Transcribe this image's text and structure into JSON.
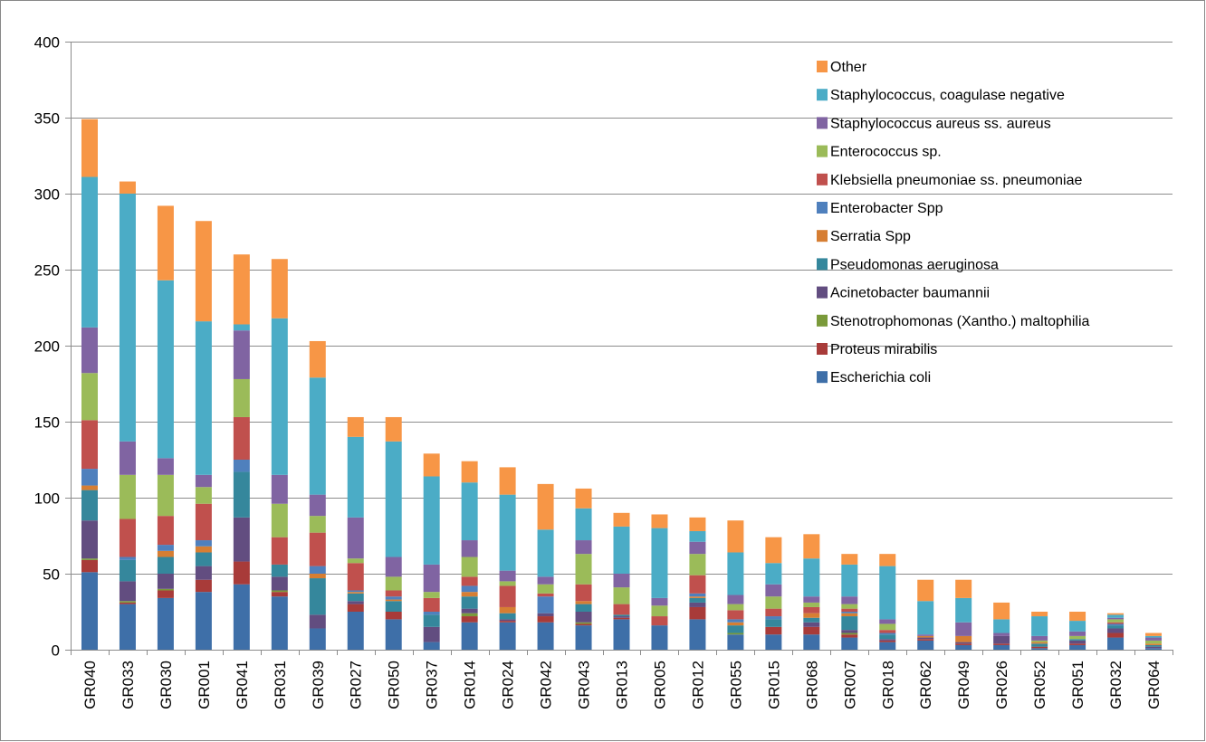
{
  "chart_data": {
    "type": "bar",
    "stacked": true,
    "title": "",
    "xlabel": "",
    "ylabel": "",
    "ylim": [
      0,
      400
    ],
    "yticks": [
      0,
      50,
      100,
      150,
      200,
      250,
      300,
      350,
      400
    ],
    "grid": "horizontal",
    "legend_position": "top-right",
    "categories": [
      "GR040",
      "GR033",
      "GR030",
      "GR001",
      "GR041",
      "GR031",
      "GR039",
      "GR027",
      "GR050",
      "GR037",
      "GR014",
      "GR024",
      "GR042",
      "GR043",
      "GR013",
      "GR005",
      "GR012",
      "GR055",
      "GR015",
      "GR068",
      "GR007",
      "GR018",
      "GR062",
      "GR049",
      "GR026",
      "GR052",
      "GR051",
      "GR032",
      "GR064"
    ],
    "series": [
      {
        "name": "Escherichia coli",
        "color": "#3e6fa8",
        "values": [
          51,
          30,
          34,
          38,
          43,
          35,
          14,
          25,
          20,
          5,
          18,
          18,
          18,
          16,
          20,
          16,
          20,
          10,
          10,
          10,
          8,
          5,
          6,
          3,
          3,
          1,
          3,
          8,
          1
        ]
      },
      {
        "name": "Proteus mirabilis",
        "color": "#a83b39",
        "values": [
          8,
          1,
          5,
          8,
          15,
          3,
          0,
          5,
          5,
          0,
          4,
          1,
          4,
          1,
          1,
          0,
          8,
          0,
          5,
          5,
          2,
          1,
          1,
          1,
          1,
          1,
          1,
          3,
          0
        ]
      },
      {
        "name": "Stenotrophomonas (Xantho.) maltophilia",
        "color": "#7a9a3a",
        "values": [
          1,
          1,
          1,
          0,
          0,
          1,
          0,
          0,
          0,
          0,
          2,
          0,
          0,
          1,
          0,
          0,
          0,
          1,
          0,
          0,
          1,
          0,
          0,
          0,
          0,
          0,
          0,
          0,
          0
        ]
      },
      {
        "name": "Acinetobacter baumannii",
        "color": "#624d80",
        "values": [
          25,
          13,
          10,
          9,
          29,
          9,
          9,
          2,
          0,
          10,
          3,
          1,
          2,
          7,
          1,
          0,
          3,
          0,
          0,
          3,
          2,
          1,
          1,
          1,
          5,
          0,
          2,
          3,
          1
        ]
      },
      {
        "name": "Pseudomonas aeruginosa",
        "color": "#35879c",
        "values": [
          20,
          14,
          11,
          9,
          30,
          8,
          24,
          5,
          7,
          8,
          8,
          4,
          0,
          5,
          1,
          0,
          3,
          5,
          5,
          3,
          9,
          3,
          0,
          0,
          0,
          2,
          1,
          2,
          1
        ]
      },
      {
        "name": "Serratia Spp",
        "color": "#d67e33",
        "values": [
          3,
          0,
          4,
          4,
          0,
          0,
          3,
          1,
          1,
          0,
          3,
          4,
          0,
          2,
          0,
          0,
          1,
          2,
          0,
          3,
          2,
          0,
          1,
          4,
          0,
          1,
          0,
          0,
          1
        ]
      },
      {
        "name": "Enterobacter Spp",
        "color": "#4f80bd",
        "values": [
          11,
          2,
          4,
          4,
          8,
          0,
          5,
          1,
          2,
          2,
          4,
          0,
          11,
          0,
          0,
          0,
          2,
          2,
          2,
          0,
          1,
          1,
          0,
          0,
          0,
          0,
          0,
          1,
          0
        ]
      },
      {
        "name": "Klebsiella pneumoniae ss. pneumoniae",
        "color": "#c0504d",
        "values": [
          32,
          25,
          19,
          24,
          28,
          18,
          22,
          18,
          4,
          9,
          6,
          14,
          2,
          11,
          7,
          6,
          12,
          6,
          5,
          4,
          2,
          2,
          0,
          0,
          0,
          0,
          0,
          1,
          0
        ]
      },
      {
        "name": "Enterococcus sp.",
        "color": "#9bbb59",
        "values": [
          31,
          29,
          27,
          11,
          25,
          22,
          11,
          3,
          9,
          4,
          13,
          3,
          6,
          20,
          11,
          7,
          14,
          4,
          8,
          3,
          3,
          4,
          0,
          0,
          0,
          1,
          2,
          2,
          2
        ]
      },
      {
        "name": "Staphylococcus aureus ss. aureus",
        "color": "#8064a2",
        "values": [
          30,
          22,
          11,
          8,
          32,
          19,
          14,
          27,
          13,
          18,
          11,
          7,
          5,
          9,
          9,
          5,
          8,
          6,
          8,
          4,
          5,
          3,
          1,
          9,
          2,
          3,
          3,
          1,
          2
        ]
      },
      {
        "name": "Staphylococcus, coagulase negative",
        "color": "#4bacc6",
        "values": [
          99,
          163,
          117,
          101,
          4,
          103,
          77,
          53,
          76,
          58,
          38,
          50,
          31,
          21,
          31,
          46,
          7,
          28,
          14,
          25,
          21,
          35,
          22,
          16,
          9,
          13,
          7,
          2,
          1
        ]
      },
      {
        "name": "Other",
        "color": "#f79646",
        "values": [
          38,
          8,
          49,
          66,
          46,
          39,
          24,
          13,
          16,
          15,
          14,
          18,
          30,
          13,
          9,
          9,
          9,
          21,
          17,
          16,
          7,
          8,
          14,
          12,
          11,
          3,
          6,
          1,
          2
        ]
      }
    ]
  }
}
